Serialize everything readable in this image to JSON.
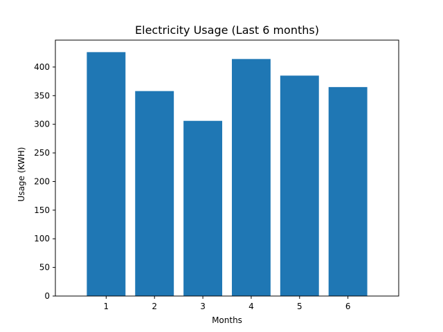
{
  "chart_data": {
    "type": "bar",
    "title": "Electricity Usage (Last 6 months)",
    "xlabel": "Months",
    "ylabel": "Usage (KWH)",
    "categories": [
      "1",
      "2",
      "3",
      "4",
      "5",
      "6"
    ],
    "values": [
      426,
      358,
      306,
      414,
      385,
      365
    ],
    "ylim": [
      0,
      447
    ],
    "yticks": [
      0,
      50,
      100,
      150,
      200,
      250,
      300,
      350,
      400
    ],
    "grid": false,
    "legend": "none",
    "colors": {
      "bar": "#1f77b4",
      "axis": "#000000",
      "background": "#ffffff"
    }
  }
}
